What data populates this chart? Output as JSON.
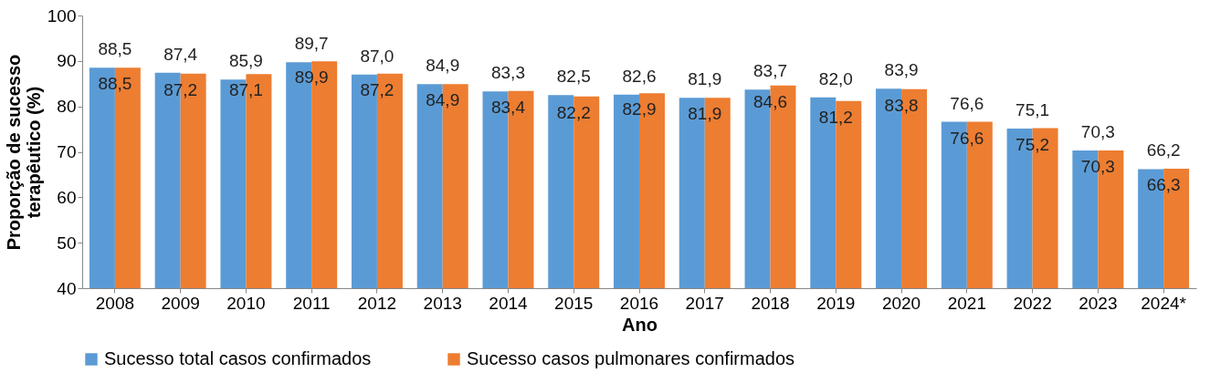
{
  "chart_data": {
    "type": "bar",
    "xlabel": "Ano",
    "ylabel": "Proporção de sucesso terapêutico (%)",
    "categories": [
      "2008",
      "2009",
      "2010",
      "2011",
      "2012",
      "2013",
      "2014",
      "2015",
      "2016",
      "2017",
      "2018",
      "2019",
      "2020",
      "2021",
      "2022",
      "2023",
      "2024*"
    ],
    "series": [
      {
        "name": "Sucesso total casos confirmados",
        "color": "#5b9bd5",
        "values": [
          88.5,
          87.4,
          85.9,
          89.7,
          87.0,
          84.9,
          83.3,
          82.5,
          82.6,
          81.9,
          83.7,
          82.0,
          83.9,
          76.6,
          75.1,
          70.3,
          66.2
        ],
        "value_labels": [
          "88,5",
          "87,4",
          "85,9",
          "89,7",
          "87,0",
          "84,9",
          "83,3",
          "82,5",
          "82,6",
          "81,9",
          "83,7",
          "82,0",
          "83,9",
          "76,6",
          "75,1",
          "70,3",
          "66,2"
        ]
      },
      {
        "name": "Sucesso casos pulmonares confirmados",
        "color": "#ed7d31",
        "values": [
          88.5,
          87.2,
          87.1,
          89.9,
          87.2,
          84.9,
          83.4,
          82.2,
          82.9,
          81.9,
          84.6,
          81.2,
          83.8,
          76.6,
          75.2,
          70.3,
          66.3
        ],
        "value_labels": [
          "88,5",
          "87,2",
          "87,1",
          "89,9",
          "87,2",
          "84,9",
          "83,4",
          "82,2",
          "82,9",
          "81,9",
          "84,6",
          "81,2",
          "83,8",
          "76,6",
          "75,2",
          "70,3",
          "66,3"
        ]
      }
    ],
    "ylim": [
      40,
      100
    ],
    "yticks": [
      40,
      50,
      60,
      70,
      80,
      90,
      100
    ],
    "grid": false,
    "legend": "bottom"
  }
}
